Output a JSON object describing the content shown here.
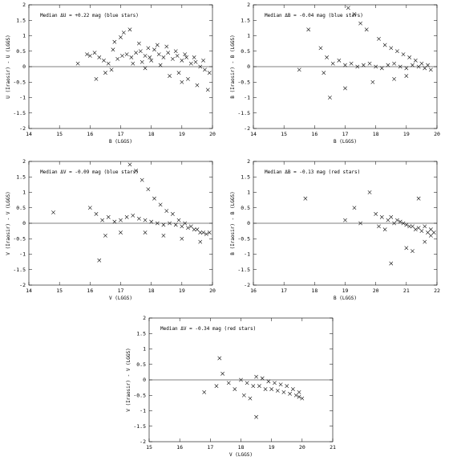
{
  "chart_data": [
    {
      "type": "scatter",
      "annotation": "Median ΔU = +0.22 mag (blue stars)",
      "xlabel": "B (LGGS)",
      "ylabel": "U (Iraosir) - U (LGGS)",
      "xlim": [
        14,
        20
      ],
      "ylim": [
        -2,
        2
      ],
      "xticks": [
        "14",
        "15",
        "16",
        "17",
        "18",
        "19",
        "20"
      ],
      "yticks": [
        "-2",
        "-1.5",
        "-1",
        "-0.5",
        "0",
        "0.5",
        "1",
        "1.5",
        "2"
      ],
      "zero_line": true,
      "points": {
        "x": [
          16.0,
          16.15,
          16.3,
          16.45,
          16.6,
          16.75,
          16.9,
          17.05,
          17.2,
          17.35,
          17.5,
          17.65,
          17.8,
          17.95,
          18.1,
          18.25,
          18.4,
          18.55,
          18.7,
          18.85,
          19.0,
          19.15,
          19.3,
          19.45,
          19.6,
          19.75,
          19.9,
          16.8,
          17.0,
          17.1,
          17.3,
          17.6,
          17.9,
          18.2,
          18.5,
          18.8,
          19.1,
          19.4,
          19.7,
          16.5,
          16.2,
          15.6,
          15.9,
          16.7,
          17.4,
          17.8,
          18.3,
          18.6,
          19.0,
          19.2,
          19.5,
          19.85,
          17.7,
          18.0,
          18.9
        ],
        "y": [
          0.35,
          0.45,
          0.3,
          0.2,
          0.1,
          0.55,
          0.25,
          0.35,
          0.4,
          0.3,
          0.45,
          0.5,
          0.35,
          0.3,
          0.55,
          0.4,
          0.3,
          0.45,
          0.25,
          0.35,
          0.2,
          0.3,
          0.1,
          0.15,
          0.0,
          -0.1,
          -0.2,
          0.8,
          0.95,
          1.1,
          1.2,
          0.75,
          0.6,
          0.7,
          0.65,
          0.5,
          0.4,
          0.3,
          0.2,
          -0.2,
          -0.4,
          0.1,
          0.4,
          -0.1,
          0.1,
          -0.05,
          0.05,
          -0.3,
          -0.5,
          -0.4,
          -0.6,
          -0.75,
          0.15,
          0.2,
          -0.2
        ]
      }
    },
    {
      "type": "scatter",
      "annotation": "Median ΔB = -0.04 mag (blue stars)",
      "xlabel": "B (LGGS)",
      "ylabel": "B (Iraosir) - B (LGGS)",
      "xlim": [
        14,
        20
      ],
      "ylim": [
        -2,
        2
      ],
      "xticks": [
        "14",
        "15",
        "16",
        "17",
        "18",
        "19",
        "20"
      ],
      "yticks": [
        "-2",
        "-1.5",
        "-1",
        "-0.5",
        "0",
        "0.5",
        "1",
        "1.5",
        "2"
      ],
      "zero_line": true,
      "points": {
        "x": [
          15.8,
          16.2,
          16.4,
          16.6,
          16.8,
          17.0,
          17.2,
          17.4,
          17.6,
          17.8,
          18.0,
          18.2,
          18.4,
          18.6,
          18.8,
          19.0,
          19.2,
          19.4,
          19.6,
          19.8,
          17.1,
          17.3,
          17.5,
          17.7,
          18.1,
          18.3,
          18.5,
          18.7,
          18.9,
          19.1,
          19.3,
          19.5,
          19.7,
          16.5,
          17.0,
          17.9,
          18.6,
          19.0,
          16.3,
          15.5
        ],
        "y": [
          1.2,
          0.6,
          0.3,
          0.1,
          0.2,
          0.05,
          0.1,
          0.0,
          0.05,
          0.1,
          0.0,
          -0.05,
          0.05,
          0.1,
          0.0,
          -0.05,
          0.05,
          0.0,
          -0.05,
          -0.1,
          1.9,
          1.7,
          1.4,
          1.2,
          0.9,
          0.7,
          0.6,
          0.5,
          0.4,
          0.3,
          0.2,
          0.1,
          0.05,
          -1.0,
          -0.7,
          -0.5,
          -0.4,
          -0.3,
          -0.2,
          -0.1
        ]
      }
    },
    {
      "type": "scatter",
      "annotation": "Median ΔV = -0.09 mag (blue stars)",
      "xlabel": "V (LGGS)",
      "ylabel": "V (Iraosir) - V (LGGS)",
      "xlim": [
        14,
        20
      ],
      "ylim": [
        -2,
        2
      ],
      "xticks": [
        "14",
        "15",
        "16",
        "17",
        "18",
        "19",
        "20"
      ],
      "yticks": [
        "-2",
        "-1.5",
        "-1",
        "-0.5",
        "0",
        "0.5",
        "1",
        "1.5",
        "2"
      ],
      "zero_line": true,
      "points": {
        "x": [
          14.8,
          16.0,
          16.2,
          16.4,
          16.6,
          16.8,
          17.0,
          17.2,
          17.4,
          17.6,
          17.8,
          18.0,
          18.2,
          18.4,
          18.6,
          18.8,
          19.0,
          19.2,
          19.4,
          19.6,
          19.8,
          19.9,
          17.3,
          17.5,
          17.7,
          17.9,
          18.1,
          18.3,
          18.5,
          18.7,
          18.9,
          19.1,
          19.3,
          19.5,
          19.7,
          16.3,
          16.5,
          17.0,
          17.8,
          18.4,
          19.0,
          19.6
        ],
        "y": [
          0.35,
          0.5,
          0.3,
          0.1,
          0.2,
          0.05,
          0.1,
          0.2,
          0.25,
          0.15,
          0.1,
          0.05,
          0.0,
          -0.05,
          0.0,
          -0.05,
          -0.1,
          -0.15,
          -0.2,
          -0.3,
          -0.35,
          -0.3,
          1.9,
          1.7,
          1.4,
          1.1,
          0.8,
          0.6,
          0.4,
          0.3,
          0.1,
          0.0,
          -0.1,
          -0.2,
          -0.3,
          -1.2,
          -0.4,
          -0.3,
          -0.3,
          -0.4,
          -0.5,
          -0.6
        ]
      }
    },
    {
      "type": "scatter",
      "annotation": "Median ΔB = -0.13 mag (red stars)",
      "xlabel": "B (LGGS)",
      "ylabel": "B (Iraosir) - B (LGGS)",
      "xlim": [
        16,
        22
      ],
      "ylim": [
        -2,
        2
      ],
      "xticks": [
        "16",
        "17",
        "18",
        "19",
        "20",
        "21",
        "22"
      ],
      "yticks": [
        "-2",
        "-1.5",
        "-1",
        "-0.5",
        "0",
        "0.5",
        "1",
        "1.5",
        "2"
      ],
      "zero_line": true,
      "points": {
        "x": [
          17.7,
          19.0,
          19.3,
          19.5,
          19.8,
          20.0,
          20.2,
          20.4,
          20.6,
          20.8,
          21.0,
          21.2,
          21.4,
          21.6,
          21.8,
          21.9,
          20.5,
          20.7,
          20.9,
          21.1,
          21.3,
          21.5,
          21.7,
          20.1,
          20.3,
          21.0,
          21.2,
          21.6,
          21.8,
          20.5,
          21.4
        ],
        "y": [
          0.8,
          0.1,
          0.5,
          0.0,
          1.0,
          0.3,
          0.2,
          0.1,
          0.0,
          0.05,
          -0.05,
          -0.1,
          -0.15,
          -0.1,
          -0.2,
          -0.3,
          0.2,
          0.1,
          0.0,
          -0.1,
          -0.2,
          -0.25,
          -0.3,
          -0.1,
          -0.2,
          -0.8,
          -0.9,
          -0.6,
          -0.4,
          -1.3,
          0.8
        ]
      }
    },
    {
      "type": "scatter",
      "annotation": "Median ΔV = -0.34 mag (red stars)",
      "xlabel": "V (LGGS)",
      "ylabel": "V (Iraosir) - V (LGGS)",
      "xlim": [
        15,
        21
      ],
      "ylim": [
        -2,
        2
      ],
      "xticks": [
        "15",
        "16",
        "17",
        "18",
        "19",
        "20",
        "21"
      ],
      "yticks": [
        "-2",
        "-1.5",
        "-1",
        "-0.5",
        "0",
        "0.5",
        "1",
        "1.5",
        "2"
      ],
      "zero_line": true,
      "points": {
        "x": [
          16.8,
          17.2,
          17.3,
          17.6,
          17.8,
          18.0,
          18.2,
          18.4,
          18.6,
          18.8,
          19.0,
          19.2,
          19.4,
          19.6,
          19.8,
          19.9,
          20.0,
          18.5,
          18.7,
          18.9,
          19.1,
          19.3,
          19.5,
          19.7,
          19.9,
          18.1,
          18.3,
          18.5,
          17.4
        ],
        "y": [
          -0.4,
          -0.2,
          0.7,
          -0.1,
          -0.3,
          0.0,
          -0.1,
          -0.2,
          -0.2,
          -0.3,
          -0.3,
          -0.35,
          -0.4,
          -0.45,
          -0.5,
          -0.55,
          -0.6,
          0.1,
          0.05,
          -0.05,
          -0.1,
          -0.15,
          -0.2,
          -0.3,
          -0.4,
          -0.5,
          -0.6,
          -1.2,
          0.2
        ]
      }
    }
  ]
}
